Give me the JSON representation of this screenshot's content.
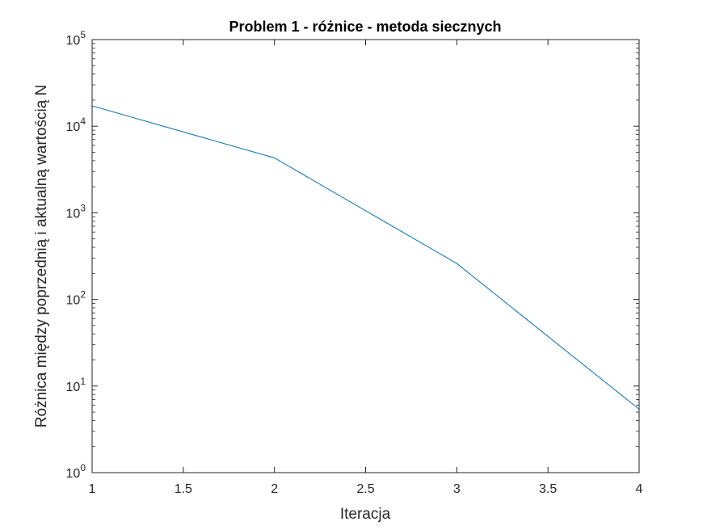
{
  "chart_data": {
    "type": "line",
    "title": "Problem 1 - różnice - metoda siecznych",
    "xlabel": "Iteracja",
    "ylabel": "Różnica między poprzednią i aktualną wartością N",
    "xlim": [
      1,
      4
    ],
    "ylim": [
      1,
      100000
    ],
    "yscale": "log",
    "grid": false,
    "legend": "none",
    "x_ticks": [
      "1",
      "1.5",
      "2",
      "2.5",
      "3",
      "3.5",
      "4"
    ],
    "y_ticks": [
      {
        "base": "10",
        "exp": "0"
      },
      {
        "base": "10",
        "exp": "1"
      },
      {
        "base": "10",
        "exp": "2"
      },
      {
        "base": "10",
        "exp": "3"
      },
      {
        "base": "10",
        "exp": "4"
      },
      {
        "base": "10",
        "exp": "5"
      }
    ],
    "series": [
      {
        "x": [
          1,
          2,
          3,
          4
        ],
        "y": [
          17200,
          4300,
          260,
          5.4
        ],
        "color": "#0072BD"
      }
    ]
  }
}
